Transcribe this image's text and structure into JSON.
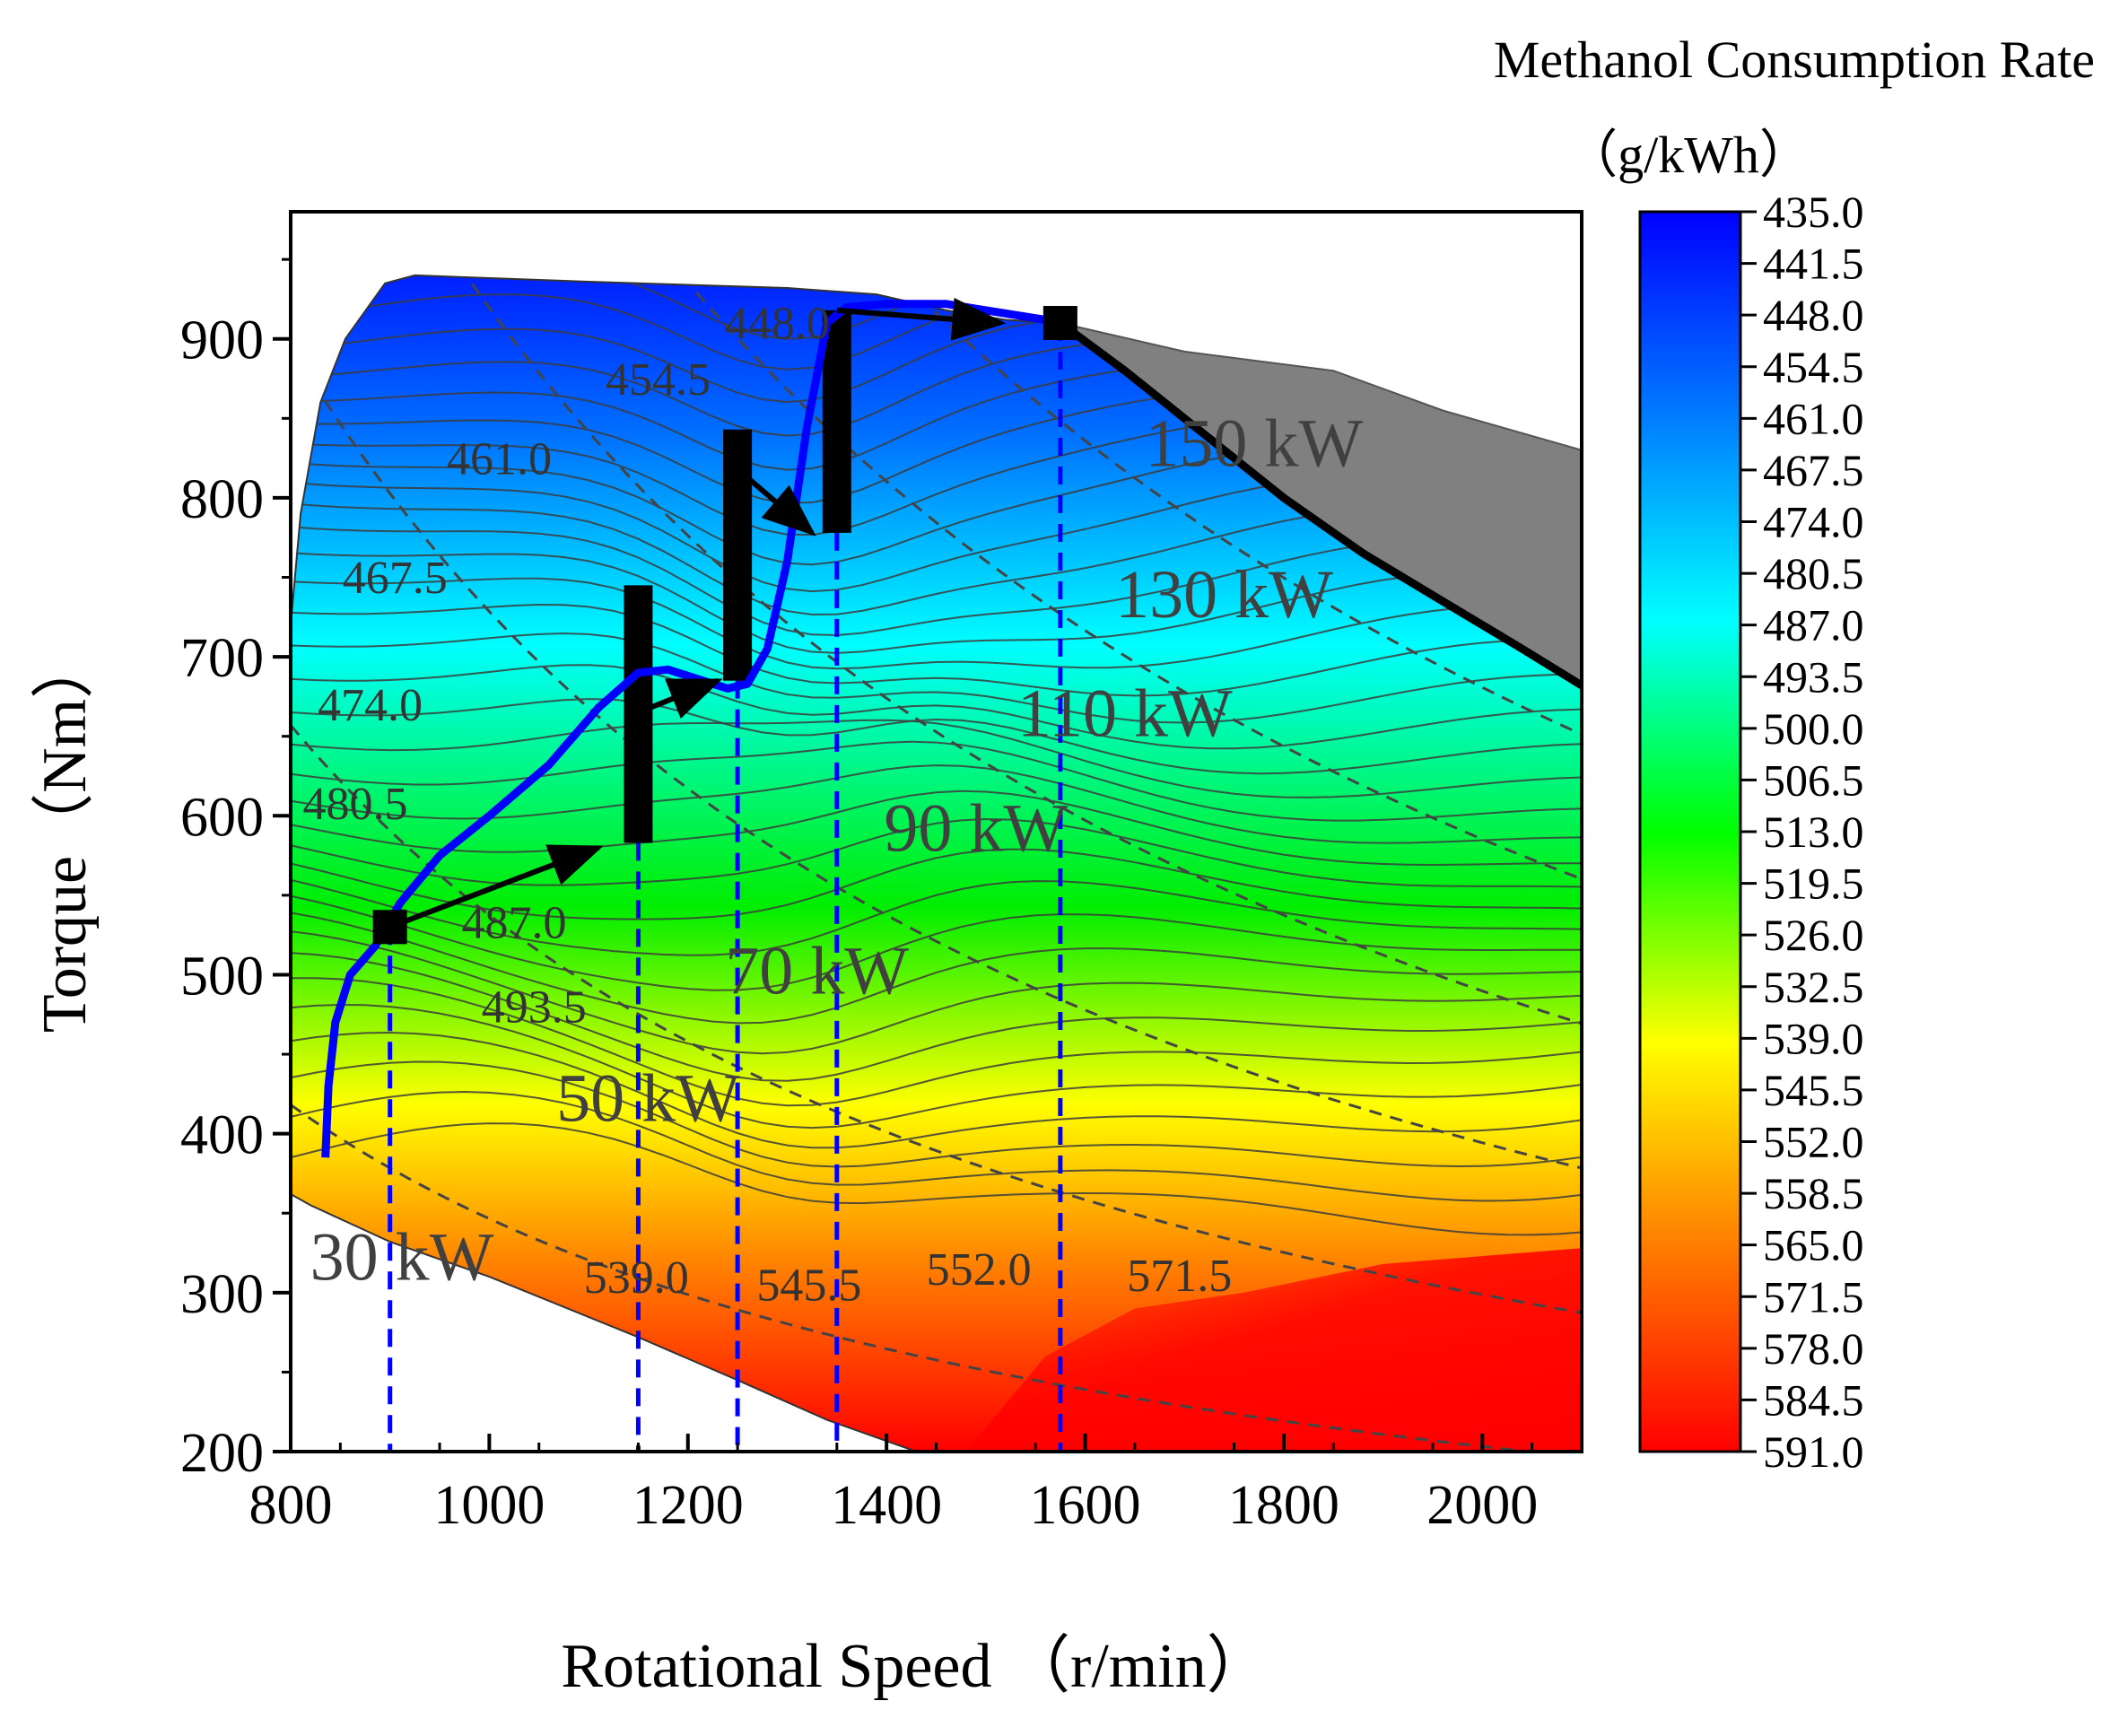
{
  "chart_data": {
    "type": "heatmap",
    "title": "",
    "xlabel": "Rotational Speed （r/min）",
    "ylabel": "Torque（Nm）",
    "xlim": [
      800,
      2100
    ],
    "ylim": [
      200,
      980
    ],
    "xticks": [
      800,
      1000,
      1200,
      1400,
      1600,
      1800,
      2000
    ],
    "xtick_labels": [
      "800",
      "1000",
      "1200",
      "1400",
      "1600",
      "1800",
      "2000"
    ],
    "yticks": [
      200,
      300,
      400,
      500,
      600,
      700,
      800,
      900
    ],
    "ytick_labels": [
      "200",
      "300",
      "400",
      "500",
      "600",
      "700",
      "800",
      "900"
    ],
    "colorbar": {
      "title_line1": "Methanol Consumption Rate",
      "title_line2": "（g/kWh）",
      "range": [
        435.0,
        591.0
      ],
      "levels": [
        "435.0",
        "441.5",
        "448.0",
        "454.5",
        "461.0",
        "467.5",
        "474.0",
        "480.5",
        "487.0",
        "493.5",
        "500.0",
        "506.5",
        "513.0",
        "519.5",
        "526.0",
        "532.5",
        "539.0",
        "545.5",
        "552.0",
        "558.5",
        "565.0",
        "571.5",
        "578.0",
        "584.5",
        "591.0"
      ],
      "colors": [
        "#0000ff",
        "#0080ff",
        "#00ffff",
        "#00ff00",
        "#ffff00",
        "#ff8000",
        "#ff0000"
      ]
    },
    "contour_labels": [
      {
        "text": "448.0",
        "x": 1290,
        "y": 900
      },
      {
        "text": "454.5",
        "x": 1170,
        "y": 865
      },
      {
        "text": "461.0",
        "x": 1010,
        "y": 815
      },
      {
        "text": "467.5",
        "x": 905,
        "y": 740
      },
      {
        "text": "474.0",
        "x": 880,
        "y": 660
      },
      {
        "text": "480.5",
        "x": 865,
        "y": 598
      },
      {
        "text": "487.0",
        "x": 1025,
        "y": 523
      },
      {
        "text": "493.5",
        "x": 1045,
        "y": 470
      },
      {
        "text": "539.0",
        "x": 1148,
        "y": 300
      },
      {
        "text": "545.5",
        "x": 1322,
        "y": 295
      },
      {
        "text": "552.0",
        "x": 1493,
        "y": 305
      },
      {
        "text": "571.5",
        "x": 1695,
        "y": 301
      }
    ],
    "power_lines": [
      {
        "label": "30 kW",
        "kw": 30,
        "label_x": 912,
        "label_y": 308
      },
      {
        "label": "50 kW",
        "kw": 50,
        "label_x": 1160,
        "label_y": 408
      },
      {
        "label": "70 kW",
        "kw": 70,
        "label_x": 1330,
        "label_y": 488
      },
      {
        "label": "90 kW",
        "kw": 90,
        "label_x": 1490,
        "label_y": 578
      },
      {
        "label": "110 kW",
        "kw": 110,
        "label_x": 1640,
        "label_y": 650
      },
      {
        "label": "130 kW",
        "kw": 130,
        "label_x": 1740,
        "label_y": 725
      },
      {
        "label": "150 kW",
        "kw": 150,
        "label_x": 1770,
        "label_y": 820
      }
    ],
    "series": [
      {
        "name": "optimal operating line",
        "type": "line",
        "color": "#0000ff",
        "x": [
          835,
          838,
          845,
          860,
          885,
          910,
          950,
          1000,
          1060,
          1110,
          1150,
          1180,
          1210,
          1240,
          1260,
          1280,
          1300,
          1320,
          1340,
          1360,
          1400,
          1460,
          1520,
          1560,
          1575
        ],
        "y": [
          385,
          430,
          470,
          500,
          518,
          545,
          575,
          600,
          632,
          668,
          690,
          692,
          686,
          680,
          683,
          705,
          760,
          845,
          910,
          920,
          922,
          922,
          916,
          912,
          910
        ]
      },
      {
        "name": "operating points",
        "type": "scatter",
        "color": "#000000",
        "x": [
          900,
          1575
        ],
        "y": [
          530,
          910
        ]
      },
      {
        "name": "speed markers",
        "type": "vline",
        "color": "#0000ff",
        "x": [
          900,
          1150,
          1250,
          1350,
          1575
        ]
      },
      {
        "name": "torque bars",
        "type": "bar",
        "color": "#000000",
        "x": [
          1150,
          1250,
          1350
        ],
        "ymin": [
          583,
          685,
          778
        ],
        "ymax": [
          745,
          843,
          918
        ]
      }
    ],
    "arrows": [
      {
        "from": [
          900,
          530
        ],
        "to": [
          1110,
          580
        ]
      },
      {
        "from": [
          1150,
          665
        ],
        "to": [
          1230,
          685
        ]
      },
      {
        "from": [
          1250,
          818
        ],
        "to": [
          1325,
          778
        ]
      },
      {
        "from": [
          1350,
          918
        ],
        "to": [
          1515,
          910
        ]
      }
    ]
  }
}
